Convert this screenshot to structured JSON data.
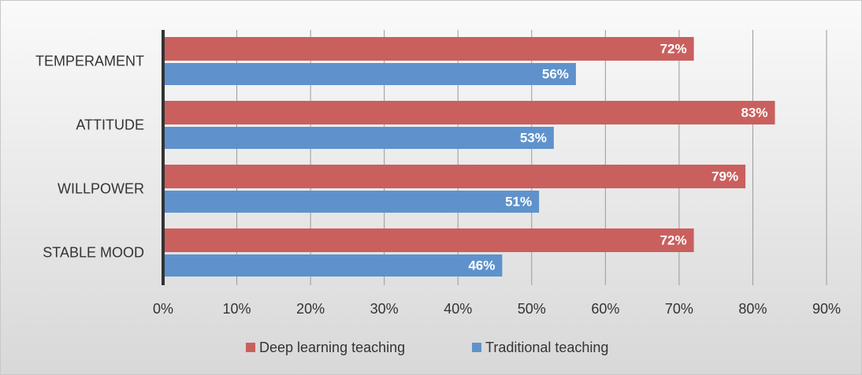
{
  "chart_data": {
    "type": "barh",
    "categories": [
      "TEMPERAMENT",
      "ATTITUDE",
      "WILLPOWER",
      "STABLE MOOD"
    ],
    "series": [
      {
        "name": "Deep learning teaching",
        "color": "#c9605e",
        "values": [
          72,
          83,
          79,
          72
        ],
        "value_labels": [
          "72%",
          "83%",
          "79%",
          "72%"
        ]
      },
      {
        "name": "Traditional teaching",
        "color": "#5f92cc",
        "values": [
          56,
          53,
          51,
          46
        ],
        "value_labels": [
          "56%",
          "53%",
          "51%",
          "46%"
        ]
      }
    ],
    "xlim": [
      0,
      90
    ],
    "xticks": [
      {
        "value": 0,
        "label": "0%"
      },
      {
        "value": 10,
        "label": "10%"
      },
      {
        "value": 20,
        "label": "20%"
      },
      {
        "value": 30,
        "label": "30%"
      },
      {
        "value": 40,
        "label": "40%"
      },
      {
        "value": 50,
        "label": "50%"
      },
      {
        "value": 60,
        "label": "60%"
      },
      {
        "value": 70,
        "label": "70%"
      },
      {
        "value": 80,
        "label": "80%"
      },
      {
        "value": 90,
        "label": "90%"
      }
    ],
    "grid": true,
    "legend": "bottom"
  }
}
